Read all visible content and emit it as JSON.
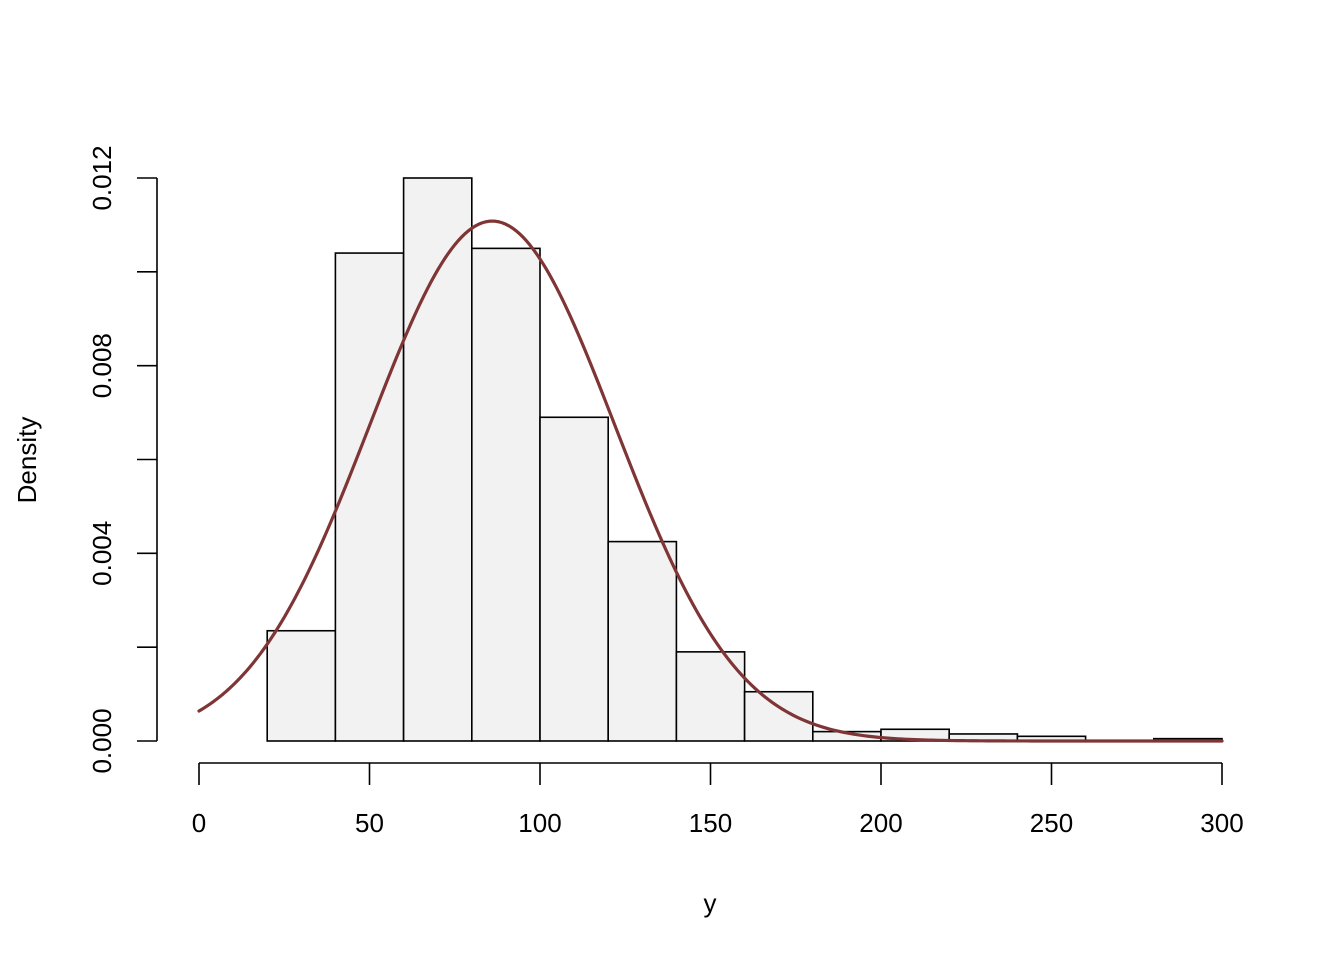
{
  "chart_data": {
    "type": "bar",
    "subtype": "histogram-with-density-curve",
    "title": "",
    "xlabel": "y",
    "ylabel": "Density",
    "xlim": [
      0,
      300
    ],
    "ylim": [
      0,
      0.012
    ],
    "x_ticks": [
      0,
      50,
      100,
      150,
      200,
      250,
      300
    ],
    "x_tick_labels": [
      "0",
      "50",
      "100",
      "150",
      "200",
      "250",
      "300"
    ],
    "y_ticks": [
      0,
      0.002,
      0.004,
      0.006,
      0.008,
      0.01,
      0.012
    ],
    "y_tick_labels": [
      "0.000",
      "",
      "0.004",
      "",
      "0.008",
      "",
      "0.012"
    ],
    "bin_width": 20,
    "bins": [
      {
        "start": 20,
        "end": 40,
        "density": 0.00235
      },
      {
        "start": 40,
        "end": 60,
        "density": 0.0104
      },
      {
        "start": 60,
        "end": 80,
        "density": 0.012
      },
      {
        "start": 80,
        "end": 100,
        "density": 0.0105
      },
      {
        "start": 100,
        "end": 120,
        "density": 0.0069
      },
      {
        "start": 120,
        "end": 140,
        "density": 0.00425
      },
      {
        "start": 140,
        "end": 160,
        "density": 0.0019
      },
      {
        "start": 160,
        "end": 180,
        "density": 0.00105
      },
      {
        "start": 180,
        "end": 200,
        "density": 0.0002
      },
      {
        "start": 200,
        "end": 220,
        "density": 0.00025
      },
      {
        "start": 220,
        "end": 240,
        "density": 0.00015
      },
      {
        "start": 240,
        "end": 260,
        "density": 0.0001
      },
      {
        "start": 260,
        "end": 280,
        "density": 0.0
      },
      {
        "start": 280,
        "end": 300,
        "density": 5e-05
      }
    ],
    "density_curve": {
      "distribution": "normal",
      "mean": 86,
      "sd": 36,
      "x_range": [
        0,
        300
      ],
      "color": "#7f3535"
    },
    "grid": false,
    "legend": "none",
    "bar_fill": "#f2f2f2",
    "bar_stroke": "#000000"
  }
}
